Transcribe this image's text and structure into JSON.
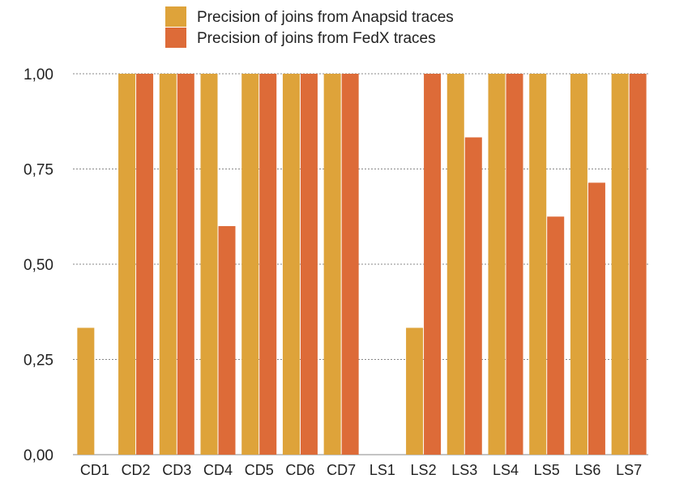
{
  "chart_data": {
    "type": "bar",
    "title": "",
    "xlabel": "",
    "ylabel": "",
    "categories": [
      "CD1",
      "CD2",
      "CD3",
      "CD4",
      "CD5",
      "CD6",
      "CD7",
      "LS1",
      "LS2",
      "LS3",
      "LS4",
      "LS5",
      "LS6",
      "LS7"
    ],
    "series": [
      {
        "name": "Precision of joins from Anapsid traces",
        "color": "#dea33a",
        "values": [
          0.333,
          1.0,
          1.0,
          1.0,
          1.0,
          1.0,
          1.0,
          0.0,
          0.333,
          1.0,
          1.0,
          1.0,
          1.0,
          1.0
        ]
      },
      {
        "name": "Precision of joins from FedX traces",
        "color": "#dd6b38",
        "values": [
          0.0,
          1.0,
          1.0,
          0.6,
          1.0,
          1.0,
          1.0,
          0.0,
          1.0,
          0.833,
          1.0,
          0.625,
          0.714,
          1.0
        ]
      }
    ],
    "ylim": [
      0,
      1
    ],
    "yticks": [
      0,
      0.25,
      0.5,
      0.75,
      1.0
    ],
    "ytick_labels": [
      "0,00",
      "0,25",
      "0,50",
      "0,75",
      "1,00"
    ],
    "grid": true,
    "legend_position": "top-center"
  }
}
